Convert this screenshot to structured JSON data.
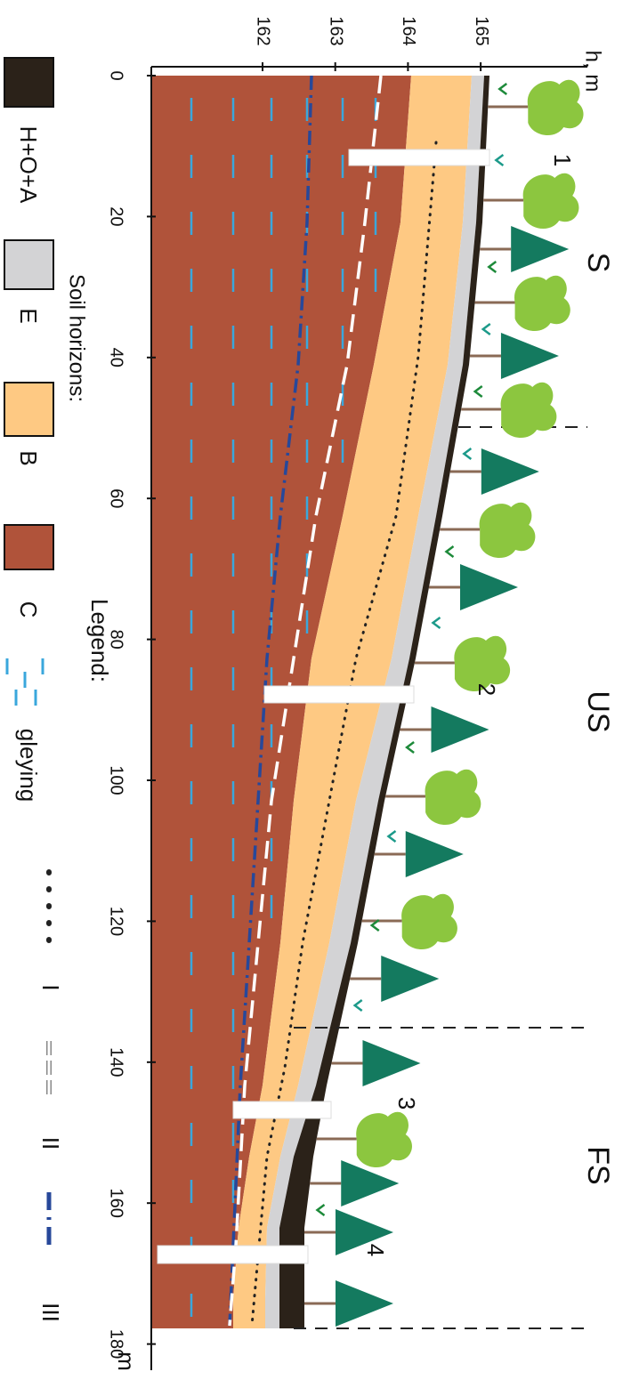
{
  "axes": {
    "y_label": "h, m",
    "x_label": "m",
    "x_ticks": [
      0,
      20,
      40,
      60,
      80,
      100,
      120,
      140,
      160,
      180
    ],
    "y_ticks": [
      162,
      163,
      164,
      165
    ]
  },
  "zones": [
    "S",
    "US",
    "FS"
  ],
  "profiles": [
    "1",
    "2",
    "3",
    "4"
  ],
  "legend": {
    "title": "Legend:",
    "horizons_title": "Soil horizons:",
    "horizons": [
      "H+O+A",
      "E",
      "B",
      "C",
      "gleying"
    ],
    "lines": [
      "I",
      "II",
      "III"
    ]
  }
}
